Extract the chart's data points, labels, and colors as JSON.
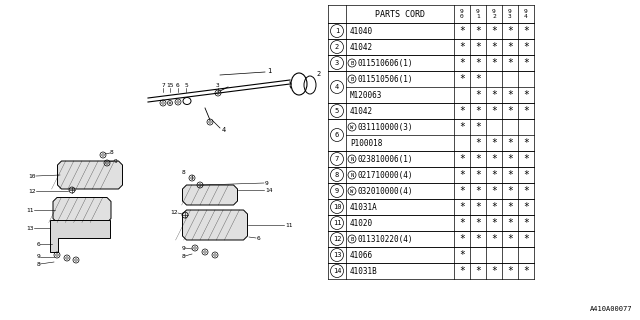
{
  "bg_color": "#ffffff",
  "diagram_ref": "A410A00077",
  "rows": [
    {
      "num": "1",
      "prefix": "",
      "part": "41040",
      "stars": [
        1,
        1,
        1,
        1,
        1
      ],
      "paired": false
    },
    {
      "num": "2",
      "prefix": "",
      "part": "41042",
      "stars": [
        1,
        1,
        1,
        1,
        1
      ],
      "paired": false
    },
    {
      "num": "3",
      "prefix": "B",
      "part": "011510606(1)",
      "stars": [
        1,
        1,
        1,
        1,
        1
      ],
      "paired": false
    },
    {
      "num": "4",
      "prefix": "B",
      "part": "011510506(1)",
      "stars": [
        1,
        1,
        0,
        0,
        0
      ],
      "paired": true,
      "part2": "M120063",
      "prefix2": "",
      "stars2": [
        0,
        1,
        1,
        1,
        1
      ]
    },
    {
      "num": "5",
      "prefix": "",
      "part": "41042",
      "stars": [
        1,
        1,
        1,
        1,
        1
      ],
      "paired": false
    },
    {
      "num": "6",
      "prefix": "W",
      "part": "031110000(3)",
      "stars": [
        1,
        1,
        0,
        0,
        0
      ],
      "paired": true,
      "part2": "P100018",
      "prefix2": "",
      "stars2": [
        0,
        1,
        1,
        1,
        1
      ]
    },
    {
      "num": "7",
      "prefix": "N",
      "part": "023810006(1)",
      "stars": [
        1,
        1,
        1,
        1,
        1
      ],
      "paired": false
    },
    {
      "num": "8",
      "prefix": "N",
      "part": "021710000(4)",
      "stars": [
        1,
        1,
        1,
        1,
        1
      ],
      "paired": false
    },
    {
      "num": "9",
      "prefix": "W",
      "part": "032010000(4)",
      "stars": [
        1,
        1,
        1,
        1,
        1
      ],
      "paired": false
    },
    {
      "num": "10",
      "prefix": "",
      "part": "41031A",
      "stars": [
        1,
        1,
        1,
        1,
        1
      ],
      "paired": false
    },
    {
      "num": "11",
      "prefix": "",
      "part": "41020",
      "stars": [
        1,
        1,
        1,
        1,
        1
      ],
      "paired": false
    },
    {
      "num": "12",
      "prefix": "B",
      "part": "011310220(4)",
      "stars": [
        1,
        1,
        1,
        1,
        1
      ],
      "paired": false
    },
    {
      "num": "13",
      "prefix": "",
      "part": "41066",
      "stars": [
        1,
        0,
        0,
        0,
        0
      ],
      "paired": false
    },
    {
      "num": "14",
      "prefix": "",
      "part": "41031B",
      "stars": [
        1,
        1,
        1,
        1,
        1
      ],
      "paired": false
    }
  ]
}
